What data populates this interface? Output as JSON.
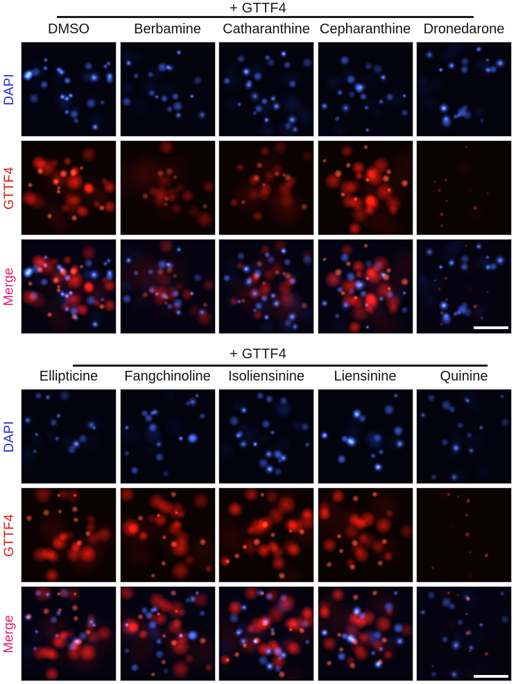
{
  "figure": {
    "row_labels": [
      {
        "text": "DAPI",
        "color": "#2727DC",
        "channel": "blue"
      },
      {
        "text": "GTTF4",
        "color": "#E41714",
        "channel": "red"
      },
      {
        "text": "Merge",
        "color": "#E81A6E",
        "channel": "merge"
      }
    ],
    "ink_color": "#1c1c1c",
    "panel_border_color": "#c9c9c9",
    "scale_bar_color": "#fafafa",
    "blocks": [
      {
        "header": "+ GTTF4",
        "scale_bar": true,
        "columns": [
          {
            "label": "DMSO",
            "seed": 11,
            "blue": {
              "n": 26,
              "b": 1.0
            },
            "red": {
              "n": 22,
              "b": 1.0,
              "style": "blobs"
            }
          },
          {
            "label": "Berbamine",
            "seed": 22,
            "blue": {
              "n": 18,
              "b": 0.8
            },
            "red": {
              "n": 13,
              "b": 0.55,
              "style": "blobs"
            }
          },
          {
            "label": "Catharanthine",
            "seed": 33,
            "blue": {
              "n": 23,
              "b": 0.9
            },
            "red": {
              "n": 15,
              "b": 0.6,
              "style": "blobs"
            }
          },
          {
            "label": "Cepharanthine",
            "seed": 44,
            "blue": {
              "n": 20,
              "b": 0.85
            },
            "red": {
              "n": 22,
              "b": 1.0,
              "style": "blobs"
            }
          },
          {
            "label": "Dronedarone",
            "seed": 55,
            "blue": {
              "n": 19,
              "b": 0.9
            },
            "red": {
              "n": 9,
              "b": 0.35,
              "style": "dots"
            }
          }
        ]
      },
      {
        "header": "+ GTTF4",
        "scale_bar": true,
        "columns": [
          {
            "label": "Ellipticine",
            "seed": 66,
            "blue": {
              "n": 14,
              "b": 0.7
            },
            "red": {
              "n": 18,
              "b": 0.9,
              "style": "blobs"
            }
          },
          {
            "label": "Fangchinoline",
            "seed": 77,
            "blue": {
              "n": 18,
              "b": 0.8
            },
            "red": {
              "n": 18,
              "b": 0.9,
              "style": "blobs"
            }
          },
          {
            "label": "Isoliensinine",
            "seed": 88,
            "blue": {
              "n": 20,
              "b": 0.9
            },
            "red": {
              "n": 20,
              "b": 1.0,
              "style": "blobs"
            }
          },
          {
            "label": "Liensinine",
            "seed": 99,
            "blue": {
              "n": 16,
              "b": 1.0
            },
            "red": {
              "n": 18,
              "b": 0.95,
              "style": "blobs"
            }
          },
          {
            "label": "Quinine",
            "seed": 111,
            "blue": {
              "n": 16,
              "b": 0.6
            },
            "red": {
              "n": 8,
              "b": 0.45,
              "style": "dots"
            }
          }
        ]
      }
    ]
  }
}
